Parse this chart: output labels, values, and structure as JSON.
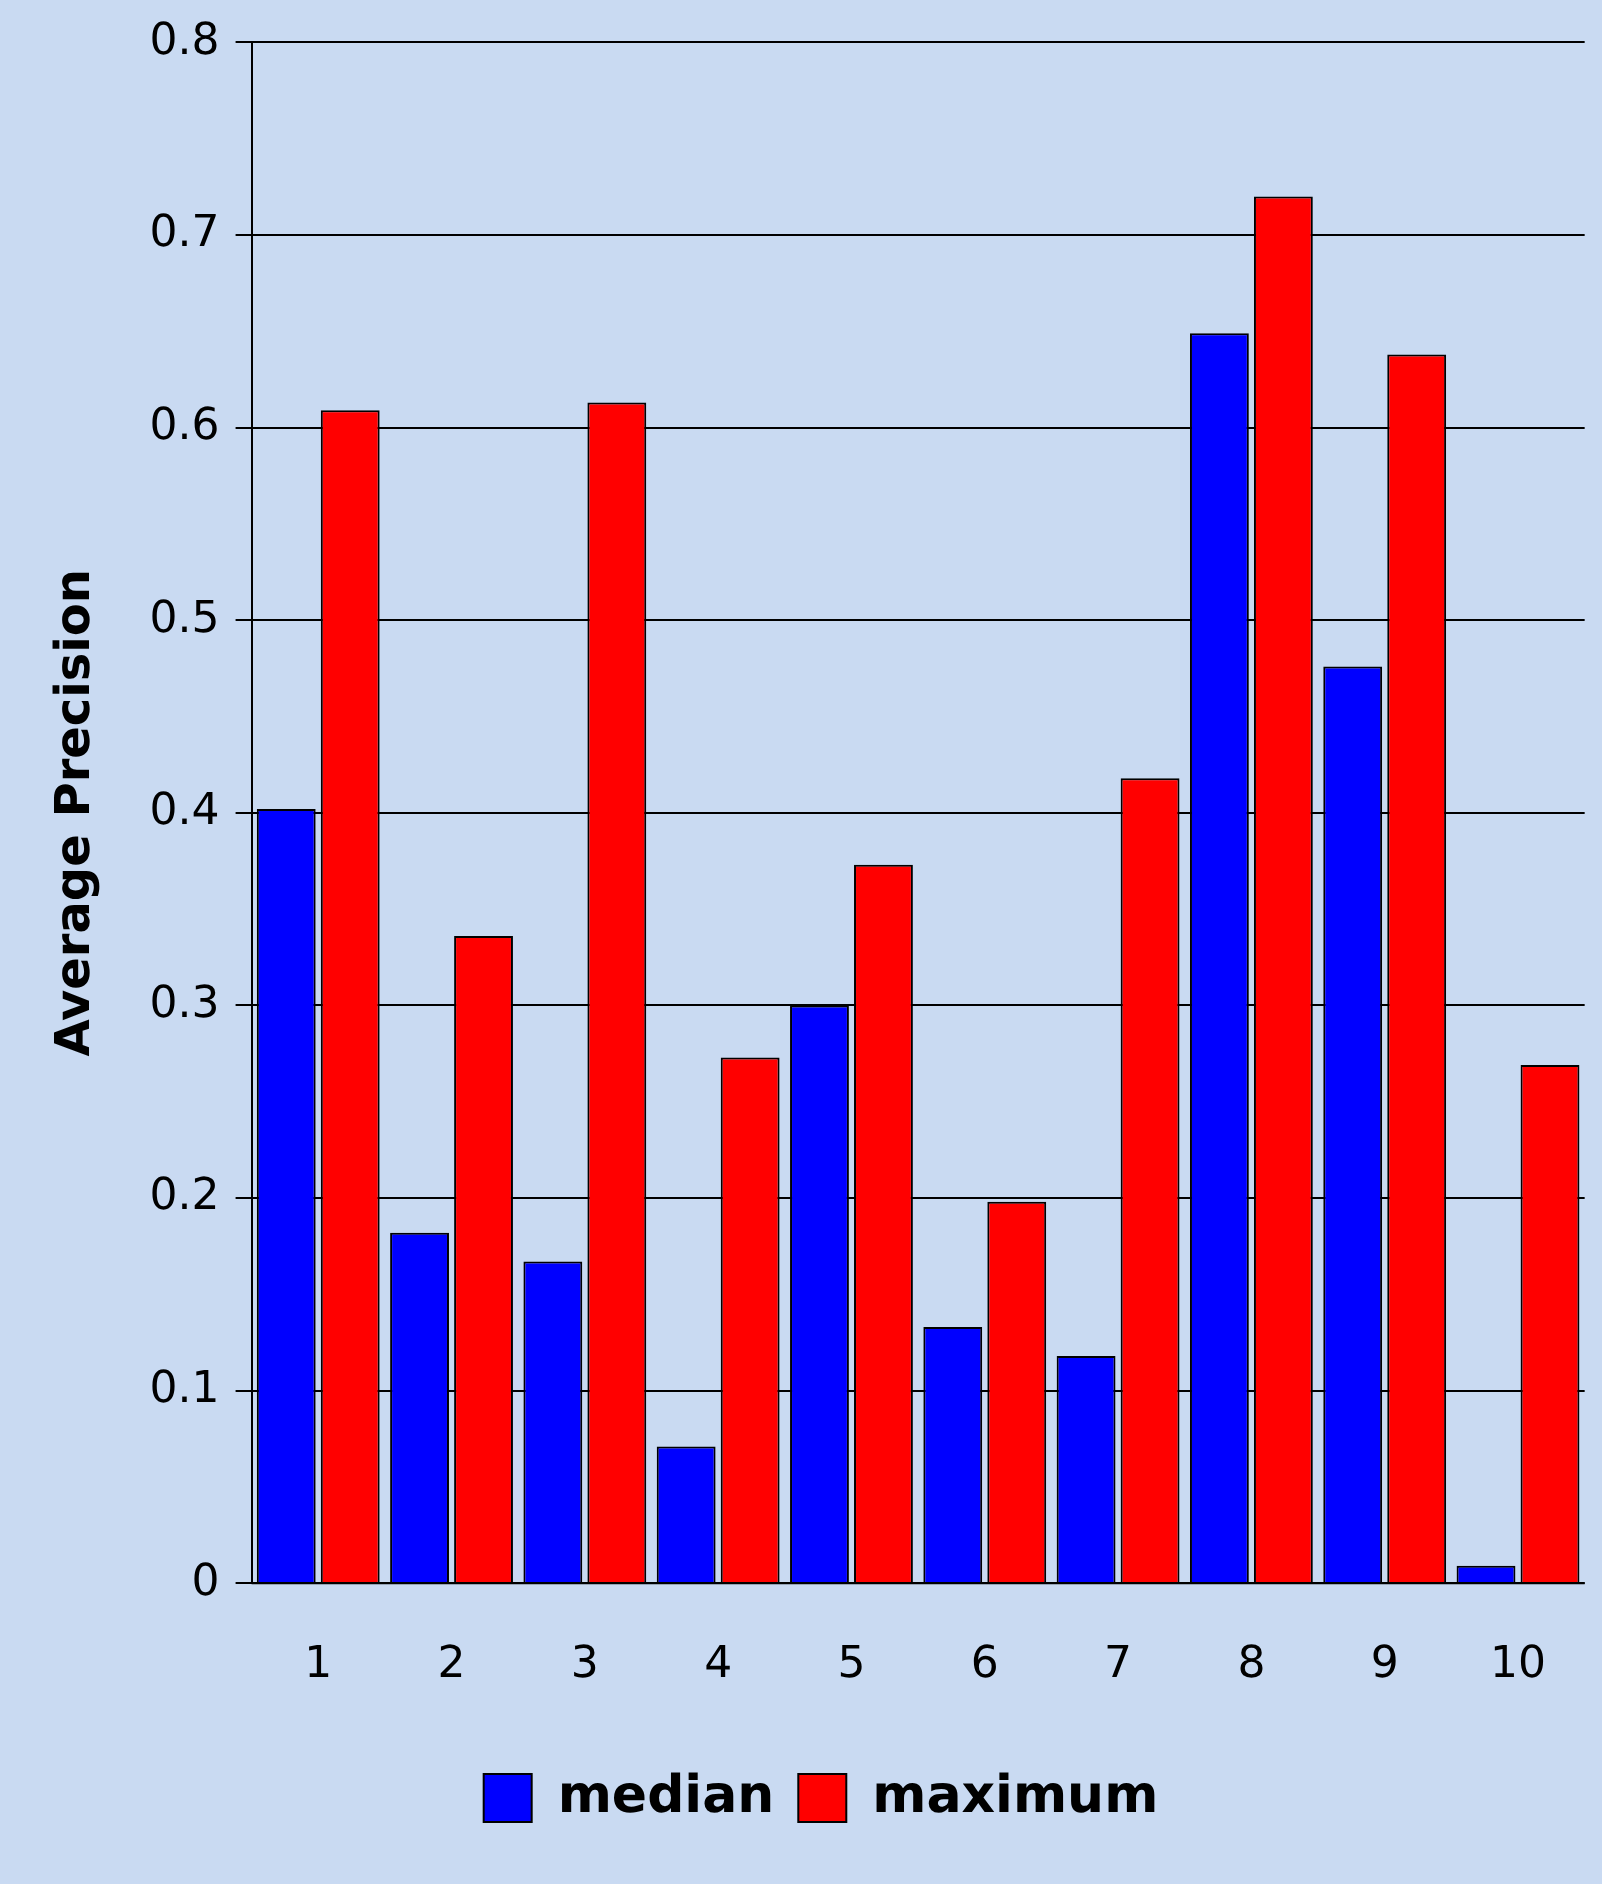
{
  "chart_data": {
    "type": "bar",
    "ylabel": "Average Precision",
    "categories": [
      "1",
      "2",
      "3",
      "4",
      "5",
      "6",
      "7",
      "8",
      "9",
      "10"
    ],
    "series": [
      {
        "name": "median",
        "color": "#0000ff",
        "values": [
          0.402,
          0.182,
          0.167,
          0.071,
          0.3,
          0.133,
          0.118,
          0.649,
          0.476,
          0.009
        ]
      },
      {
        "name": "maximum",
        "color": "#ff0000",
        "values": [
          0.609,
          0.336,
          0.613,
          0.273,
          0.373,
          0.198,
          0.418,
          0.72,
          0.638,
          0.269
        ]
      }
    ],
    "ylim": [
      0,
      0.8
    ],
    "yticks": [
      0,
      0.1,
      0.2,
      0.3,
      0.4,
      0.5,
      0.6,
      0.7,
      0.8
    ],
    "grid": "y",
    "legend": "bottom"
  }
}
